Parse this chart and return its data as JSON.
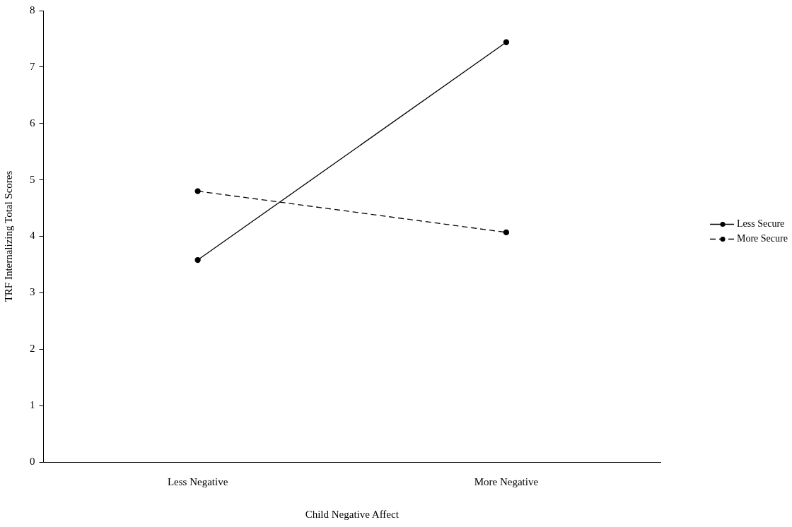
{
  "chart_data": {
    "type": "line",
    "xlabel": "Child Negative Affect",
    "ylabel": "TRF Internalizing Total Scores",
    "categories": [
      "Less Negative",
      "More Negative"
    ],
    "series": [
      {
        "name": "Less Secure",
        "color": "#000000",
        "line_style": "solid",
        "values": [
          3.58,
          7.44
        ]
      },
      {
        "name": "More Secure",
        "color": "#000000",
        "line_style": "dashed",
        "values": [
          4.8,
          4.07
        ]
      }
    ],
    "ylim": [
      0,
      8
    ],
    "yticks": [
      0,
      1,
      2,
      3,
      4,
      5,
      6,
      7,
      8
    ],
    "grid": false,
    "legend": "right",
    "marker": "circle"
  }
}
